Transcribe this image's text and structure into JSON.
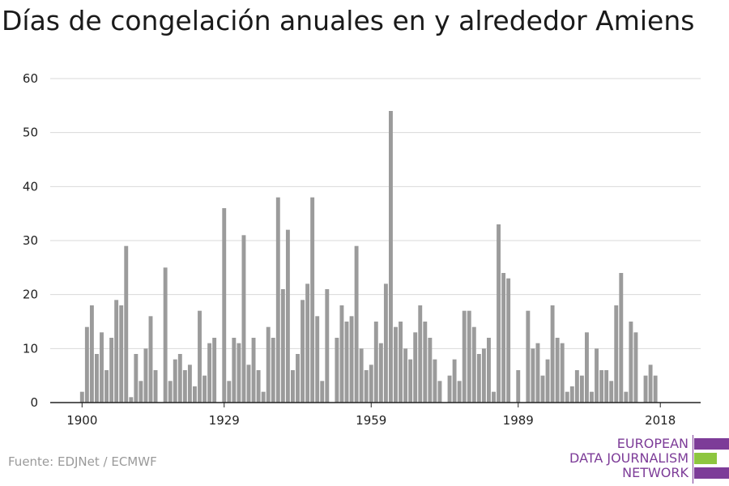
{
  "title": "Días de congelación anuales en y alrededor Amiens",
  "source": "Fuente: EDJNet / ECMWF",
  "logo": {
    "lines": [
      "EUROPEAN",
      "DATA JOURNALISM",
      "NETWORK"
    ],
    "colors": {
      "purple": "#7d3c98",
      "green": "#8dc63f"
    }
  },
  "colors": {
    "bar": "#9b9b9b",
    "grid": "#d9d9d9",
    "axis": "#222222"
  },
  "chart_data": {
    "type": "bar",
    "x_start": 1900,
    "x_end": 2018,
    "x_tick_labels": [
      "1900",
      "1929",
      "1959",
      "1989",
      "2018"
    ],
    "y_tick_labels": [
      "0",
      "10",
      "20",
      "30",
      "40",
      "50",
      "60"
    ],
    "ylim": [
      0,
      60
    ],
    "grid": true,
    "xlabel": "",
    "ylabel": "",
    "values": [
      2,
      14,
      18,
      9,
      13,
      6,
      12,
      19,
      18,
      29,
      1,
      9,
      4,
      10,
      16,
      6,
      0,
      25,
      4,
      8,
      9,
      6,
      7,
      3,
      17,
      5,
      11,
      12,
      0,
      36,
      4,
      12,
      11,
      31,
      7,
      12,
      6,
      2,
      14,
      12,
      38,
      21,
      32,
      6,
      9,
      19,
      22,
      38,
      16,
      4,
      21,
      0,
      12,
      18,
      15,
      16,
      29,
      10,
      6,
      7,
      15,
      11,
      22,
      54,
      14,
      15,
      10,
      8,
      13,
      18,
      15,
      12,
      8,
      4,
      0,
      5,
      8,
      4,
      17,
      17,
      14,
      9,
      10,
      12,
      2,
      33,
      24,
      23,
      0,
      6,
      0,
      17,
      10,
      11,
      5,
      8,
      18,
      12,
      11,
      2,
      3,
      6,
      5,
      13,
      2,
      10,
      6,
      6,
      4,
      18,
      24,
      2,
      15,
      13,
      0,
      5,
      7,
      5,
      0
    ]
  }
}
